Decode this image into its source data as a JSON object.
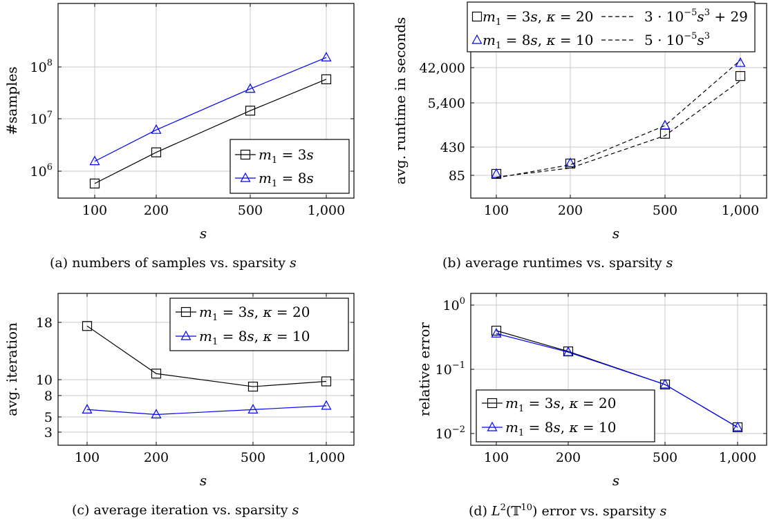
{
  "charts": [
    {
      "id": "a",
      "caption": "(a) numbers of samples vs. sparsity s",
      "xlabel": "s",
      "ylabel": "#samples",
      "legend_position": "bottom-right"
    },
    {
      "id": "b",
      "caption": "(b) average runtimes vs. sparsity s",
      "xlabel": "s",
      "ylabel": "avg. runtime in seconds",
      "legend_position": "top (outside, overlapping)"
    },
    {
      "id": "c",
      "caption": "(c) average iteration vs. sparsity s",
      "xlabel": "s",
      "ylabel": "avg. iteration",
      "legend_position": "top-right"
    },
    {
      "id": "d",
      "caption": "(d) L2(T10) error vs. sparsity s",
      "xlabel": "s",
      "ylabel": "relative error",
      "legend_position": "bottom-left"
    }
  ],
  "chart_data": [
    {
      "type": "line",
      "x": [
        100,
        200,
        500,
        1000
      ],
      "xticks": [
        "100",
        "200",
        "500",
        "1,000"
      ],
      "xscale": "log",
      "yscale": "log",
      "ylim": [
        500000,
        200000000
      ],
      "yticks": [
        "10^6",
        "10^7",
        "10^8"
      ],
      "grid": true,
      "series": [
        {
          "name": "m1 = 3s",
          "marker": "square",
          "color": "#000000",
          "values": [
            580000,
            2300000,
            14500000,
            58000000
          ]
        },
        {
          "name": "m1 = 8s",
          "marker": "triangle",
          "color": "#0000ff",
          "values": [
            1550000,
            6200000,
            38000000,
            152000000
          ]
        }
      ]
    },
    {
      "type": "line",
      "x": [
        100,
        200,
        500,
        1000
      ],
      "xticks": [
        "100",
        "200",
        "500",
        "1,000"
      ],
      "xscale": "log",
      "yscale": "cubic",
      "yticks": [
        "85",
        "430",
        "5,400",
        "42,000"
      ],
      "grid": true,
      "series": [
        {
          "name": "m1 = 3s, κ = 20",
          "marker": "square",
          "color": "#000000",
          "values": [
            110,
            460,
            4200,
            34000
          ]
        },
        {
          "name": "m1 = 8s, κ = 10",
          "marker": "triangle",
          "color": "#0000ff",
          "values": [
            110,
            480,
            6300,
            47000
          ]
        },
        {
          "name": "3 · 10^-5 s^3 + 29",
          "style": "dashed",
          "color": "#000000",
          "values": [
            59,
            269,
            3779,
            30029
          ]
        },
        {
          "name": "5 · 10^-5 s^3",
          "style": "dashed",
          "color": "#000000",
          "values": [
            50,
            400,
            6250,
            50000
          ]
        }
      ]
    },
    {
      "type": "line",
      "x": [
        100,
        200,
        500,
        1000
      ],
      "xticks": [
        "100",
        "200",
        "500",
        "1,000"
      ],
      "xscale": "log",
      "yscale": "sqrt",
      "yticks": [
        "3",
        "5",
        "8",
        "10",
        "18"
      ],
      "grid": true,
      "series": [
        {
          "name": "m1 = 3s, κ = 20",
          "marker": "square",
          "color": "#000000",
          "values": [
            17.4,
            9.1,
            7.3,
            8.0
          ]
        },
        {
          "name": "m1 = 8s, κ = 10",
          "marker": "triangle",
          "color": "#0000ff",
          "values": [
            4.6,
            4.1,
            4.6,
            5.0
          ]
        }
      ]
    },
    {
      "type": "line",
      "x": [
        100,
        200,
        500,
        1000
      ],
      "xticks": [
        "100",
        "200",
        "500",
        "1,000"
      ],
      "xscale": "log",
      "yscale": "log",
      "ylim": [
        0.0055,
        2
      ],
      "yticks": [
        "10^0",
        "10^-1",
        "10^-2"
      ],
      "grid": true,
      "series": [
        {
          "name": "m1 = 3s, κ = 20",
          "marker": "square",
          "color": "#000000",
          "values": [
            0.4,
            0.19,
            0.058,
            0.0125
          ]
        },
        {
          "name": "m1 = 8s, κ = 10",
          "marker": "triangle",
          "color": "#0000ff",
          "values": [
            0.36,
            0.185,
            0.058,
            0.0125
          ]
        }
      ]
    }
  ]
}
